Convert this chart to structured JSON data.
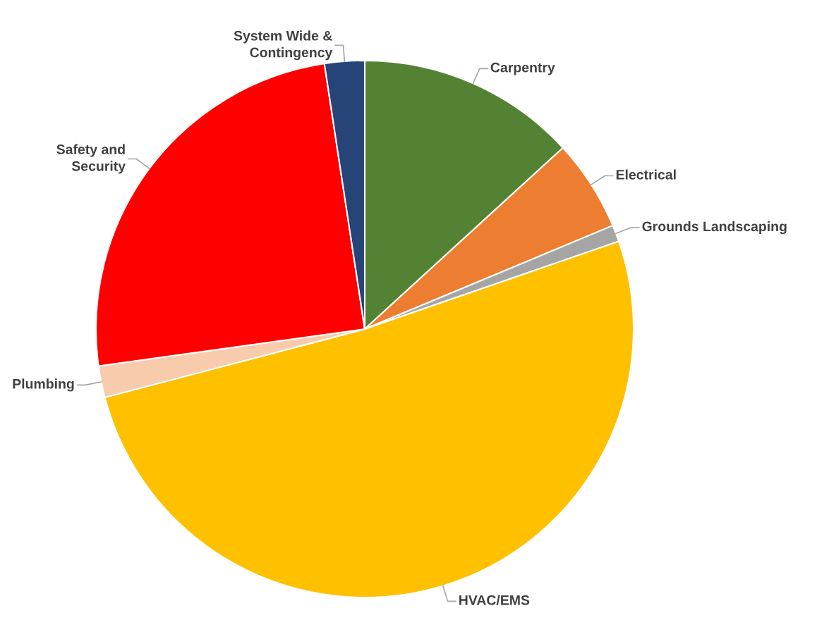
{
  "chart_data": {
    "type": "pie",
    "categories": [
      "Carpentry",
      "Electrical",
      "Grounds Landscaping",
      "HVAC/EMS",
      "Plumbing",
      "Safety and\nSecurity",
      "System Wide &\nContingency"
    ],
    "values": [
      13.2,
      5.5,
      1.0,
      51.2,
      1.9,
      24.8,
      2.4
    ],
    "colors": [
      "#548235",
      "#ed7d31",
      "#a5a5a5",
      "#ffc000",
      "#f8cbad",
      "#ff0000",
      "#264478"
    ]
  }
}
